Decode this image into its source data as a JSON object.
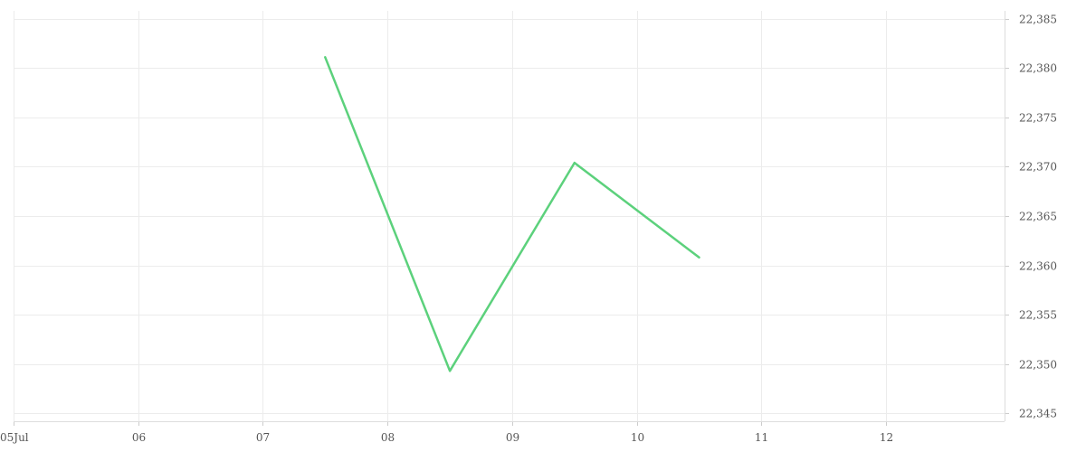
{
  "chart_data": {
    "type": "line",
    "title": "",
    "xlabel": "",
    "ylabel": "",
    "x_axis": {
      "ticks": [
        {
          "x": 5,
          "label": "05Jul"
        },
        {
          "x": 6,
          "label": "06"
        },
        {
          "x": 7,
          "label": "07"
        },
        {
          "x": 8,
          "label": "08"
        },
        {
          "x": 9,
          "label": "09"
        },
        {
          "x": 10,
          "label": "10"
        },
        {
          "x": 11,
          "label": "11"
        },
        {
          "x": 12,
          "label": "12"
        }
      ],
      "range": [
        5,
        12.95
      ]
    },
    "y_axis": {
      "position": "right",
      "ticks": [
        {
          "y": 22345,
          "label": "22,345"
        },
        {
          "y": 22350,
          "label": "22,350"
        },
        {
          "y": 22355,
          "label": "22,355"
        },
        {
          "y": 22360,
          "label": "22,360"
        },
        {
          "y": 22365,
          "label": "22,365"
        },
        {
          "y": 22370,
          "label": "22,370"
        },
        {
          "y": 22375,
          "label": "22,375"
        },
        {
          "y": 22380,
          "label": "22,380"
        },
        {
          "y": 22385,
          "label": "22,385"
        }
      ],
      "range": [
        22344.2,
        22385.8
      ]
    },
    "grid": true,
    "legend": "none",
    "series": [
      {
        "color": "#5cd17c",
        "points": [
          {
            "x": 7.5,
            "y": 22381.1
          },
          {
            "x": 8.5,
            "y": 22349.3
          },
          {
            "x": 9.5,
            "y": 22370.4
          },
          {
            "x": 10.5,
            "y": 22360.8
          }
        ]
      }
    ]
  }
}
